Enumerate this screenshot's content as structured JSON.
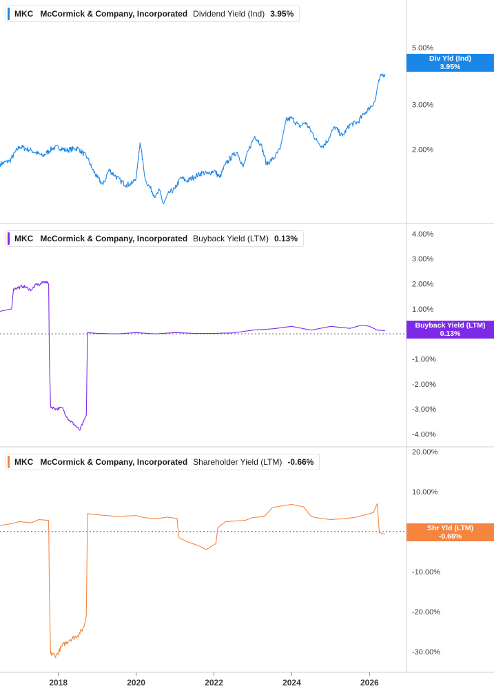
{
  "panels": [
    {
      "ticker": "MKC",
      "company": "McCormick & Company, Incorporated",
      "metric": "Dividend Yield (Ind)",
      "value": "3.95%",
      "tag_label": "Div Yld (Ind)",
      "tag_value": "3.95%",
      "color": "#1a86e8"
    },
    {
      "ticker": "MKC",
      "company": "McCormick & Company, Incorporated",
      "metric": "Buyback Yield (LTM)",
      "value": "0.13%",
      "tag_label": "Buyback Yield (LTM)",
      "tag_value": "0.13%",
      "color": "#7d2ae8"
    },
    {
      "ticker": "MKC",
      "company": "McCormick & Company, Incorporated",
      "metric": "Shareholder Yield (LTM)",
      "value": "-0.66%",
      "tag_label": "Shr Yld (LTM)",
      "tag_value": "-0.66%",
      "color": "#f5843f"
    }
  ],
  "chart_data": [
    {
      "type": "line",
      "scale": "log",
      "title": "MKC McCormick & Company, Incorporated Dividend Yield (Ind) 3.95%",
      "y_ticks": [
        {
          "v": 5,
          "label": "5.00%"
        },
        {
          "v": 3,
          "label": "3.00%"
        },
        {
          "v": 2,
          "label": "2.00%"
        }
      ],
      "ylim": [
        1.05,
        7.5
      ],
      "series": [
        {
          "name": "Dividend Yield (Ind)",
          "x": [
            2016.5,
            2016.75,
            2017.0,
            2017.3,
            2017.6,
            2017.85,
            2018.0,
            2018.2,
            2018.5,
            2018.75,
            2018.85,
            2019.0,
            2019.15,
            2019.3,
            2019.45,
            2019.6,
            2019.75,
            2019.9,
            2020.0,
            2020.1,
            2020.2,
            2020.25,
            2020.35,
            2020.5,
            2020.6,
            2020.7,
            2020.85,
            2021.0,
            2021.15,
            2021.3,
            2021.5,
            2021.7,
            2021.85,
            2022.0,
            2022.15,
            2022.3,
            2022.5,
            2022.6,
            2022.75,
            2022.9,
            2023.05,
            2023.2,
            2023.35,
            2023.55,
            2023.7,
            2023.85,
            2024.0,
            2024.2,
            2024.35,
            2024.5,
            2024.65,
            2024.8,
            2024.95,
            2025.1,
            2025.3,
            2025.5,
            2025.7,
            2025.85,
            2026.0,
            2026.15,
            2026.2,
            2026.3,
            2026.4
          ],
          "values": [
            1.75,
            1.8,
            2.05,
            1.98,
            1.88,
            2.02,
            2.04,
            1.98,
            2.02,
            1.85,
            1.7,
            1.55,
            1.45,
            1.66,
            1.58,
            1.5,
            1.45,
            1.47,
            1.55,
            2.12,
            1.65,
            1.5,
            1.42,
            1.3,
            1.38,
            1.22,
            1.35,
            1.4,
            1.55,
            1.5,
            1.56,
            1.62,
            1.6,
            1.65,
            1.55,
            1.75,
            1.9,
            1.95,
            1.7,
            2.0,
            2.25,
            2.1,
            1.75,
            1.85,
            2.0,
            2.6,
            2.65,
            2.45,
            2.55,
            2.35,
            2.15,
            2.05,
            2.2,
            2.45,
            2.25,
            2.5,
            2.55,
            2.75,
            2.9,
            3.1,
            3.5,
            3.9,
            3.95
          ]
        }
      ]
    },
    {
      "type": "line",
      "scale": "linear",
      "title": "MKC McCormick & Company, Incorporated Buyback Yield (LTM) 0.13%",
      "y_ticks": [
        {
          "v": 4,
          "label": "4.00%"
        },
        {
          "v": 3,
          "label": "3.00%"
        },
        {
          "v": 2,
          "label": "2.00%"
        },
        {
          "v": 1,
          "label": "1.00%"
        },
        {
          "v": 0,
          "label": "0.00%"
        },
        {
          "v": -1,
          "label": "-1.00%"
        },
        {
          "v": -2,
          "label": "-2.00%"
        },
        {
          "v": -3,
          "label": "-3.00%"
        },
        {
          "v": -4,
          "label": "-4.00%"
        }
      ],
      "ylim": [
        -4.4,
        4.3
      ],
      "series": [
        {
          "name": "Buyback Yield (LTM)",
          "x": [
            2016.5,
            2016.8,
            2016.85,
            2017.1,
            2017.3,
            2017.45,
            2017.5,
            2017.65,
            2017.75,
            2017.77,
            2017.8,
            2017.95,
            2018.1,
            2018.25,
            2018.4,
            2018.55,
            2018.65,
            2018.72,
            2018.75,
            2019.0,
            2019.5,
            2020.0,
            2020.5,
            2021.0,
            2021.5,
            2022.0,
            2022.5,
            2023.0,
            2023.5,
            2024.0,
            2024.5,
            2025.0,
            2025.5,
            2025.8,
            2026.0,
            2026.2,
            2026.4
          ],
          "values": [
            0.9,
            1.0,
            1.8,
            1.9,
            1.75,
            2.0,
            1.95,
            2.1,
            2.0,
            -1.0,
            -2.9,
            -3.0,
            -2.95,
            -3.4,
            -3.6,
            -3.85,
            -3.5,
            -3.25,
            0.05,
            0.02,
            0.0,
            0.05,
            0.0,
            0.05,
            0.02,
            0.02,
            0.04,
            0.15,
            0.2,
            0.3,
            0.15,
            0.3,
            0.22,
            0.35,
            0.3,
            0.15,
            0.13
          ]
        }
      ]
    },
    {
      "type": "line",
      "scale": "linear",
      "title": "MKC McCormick & Company, Incorporated Shareholder Yield (LTM) -0.66%",
      "y_ticks": [
        {
          "v": 20,
          "label": "20.00%"
        },
        {
          "v": 10,
          "label": "10.00%"
        },
        {
          "v": 0,
          "label": "0.00%"
        },
        {
          "v": -10,
          "label": "-10.00%"
        },
        {
          "v": -20,
          "label": "-20.00%"
        },
        {
          "v": -30,
          "label": "-30.00%"
        }
      ],
      "ylim": [
        -34.5,
        20.5
      ],
      "series": [
        {
          "name": "Shareholder Yield (LTM)",
          "x": [
            2016.5,
            2016.8,
            2017.0,
            2017.3,
            2017.5,
            2017.75,
            2017.77,
            2017.8,
            2017.95,
            2018.1,
            2018.3,
            2018.5,
            2018.65,
            2018.72,
            2018.75,
            2019.0,
            2019.5,
            2020.0,
            2020.2,
            2020.5,
            2020.8,
            2021.05,
            2021.1,
            2021.3,
            2021.6,
            2021.8,
            2022.05,
            2022.1,
            2022.3,
            2022.8,
            2023.0,
            2023.3,
            2023.5,
            2023.8,
            2024.0,
            2024.3,
            2024.5,
            2024.6,
            2025.0,
            2025.3,
            2025.6,
            2025.9,
            2026.1,
            2026.2,
            2026.25,
            2026.4
          ],
          "values": [
            1.5,
            2.0,
            2.5,
            2.2,
            3.0,
            2.8,
            -15.0,
            -30.5,
            -31.0,
            -28.5,
            -27.0,
            -26.0,
            -24.0,
            -21.0,
            4.5,
            4.2,
            3.8,
            4.0,
            3.5,
            3.2,
            3.6,
            3.3,
            -1.5,
            -2.5,
            -3.5,
            -4.5,
            -3.0,
            1.0,
            2.5,
            2.8,
            3.5,
            3.8,
            6.0,
            6.5,
            6.8,
            6.2,
            3.8,
            3.5,
            3.0,
            3.2,
            3.5,
            4.2,
            4.8,
            7.0,
            -0.3,
            -0.66
          ]
        }
      ]
    }
  ],
  "x_axis": {
    "ticks": [
      {
        "v": 2018,
        "label": "2018"
      },
      {
        "v": 2020,
        "label": "2020"
      },
      {
        "v": 2022,
        "label": "2022"
      },
      {
        "v": 2024,
        "label": "2024"
      },
      {
        "v": 2026,
        "label": "2026"
      }
    ],
    "xlim": [
      2016.5,
      2026.95
    ]
  }
}
